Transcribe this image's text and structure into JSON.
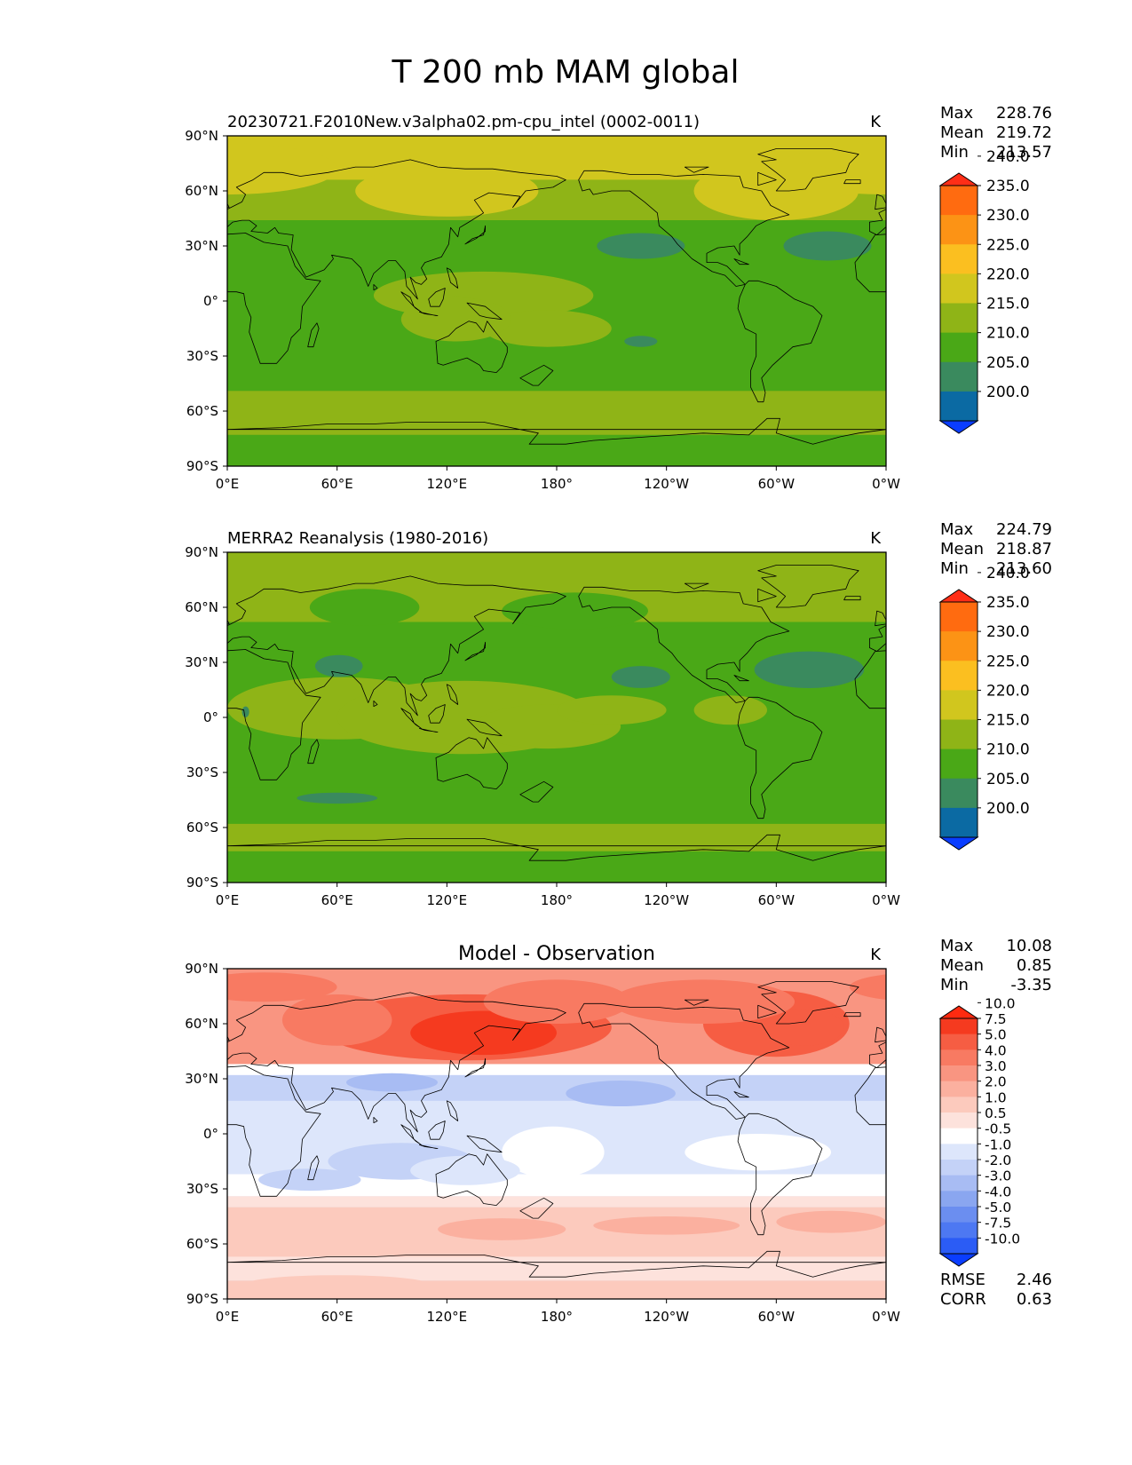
{
  "figure": {
    "title": "T 200 mb MAM global"
  },
  "chart_data": [
    {
      "type": "heatmap",
      "title": "20230721.F2010New.v3alpha02.pm-cpu_intel (0002-0011)",
      "units": "K",
      "stats": {
        "max_label": "Max",
        "max": "228.76",
        "mean_label": "Mean",
        "mean": "219.72",
        "min_label": "Min",
        "min": "213.57"
      },
      "xlim": [
        0,
        360
      ],
      "ylim": [
        -90,
        90
      ],
      "x_ticks": [
        "0°E",
        "60°E",
        "120°E",
        "180°",
        "120°W",
        "60°W",
        "0°W"
      ],
      "y_ticks": [
        "90°S",
        "60°S",
        "30°S",
        "0°",
        "30°N",
        "60°N",
        "90°N"
      ],
      "colorbar": {
        "levels": [
          "200.0",
          "205.0",
          "210.0",
          "215.0",
          "220.0",
          "225.0",
          "230.0",
          "235.0",
          "240.0"
        ],
        "colors": [
          "#0a3dff",
          "#0b6aa3",
          "#3a8a5e",
          "#4aa817",
          "#8fb417",
          "#d1c61e",
          "#fbbf20",
          "#fc9315",
          "#ff6b10",
          "#ff2e17"
        ]
      }
    },
    {
      "type": "heatmap",
      "title": "MERRA2 Reanalysis (1980-2016)",
      "units": "K",
      "stats": {
        "max_label": "Max",
        "max": "224.79",
        "mean_label": "Mean",
        "mean": "218.87",
        "min_label": "Min",
        "min": "213.60"
      },
      "xlim": [
        0,
        360
      ],
      "ylim": [
        -90,
        90
      ],
      "x_ticks": [
        "0°E",
        "60°E",
        "120°E",
        "180°",
        "120°W",
        "60°W",
        "0°W"
      ],
      "y_ticks": [
        "90°S",
        "60°S",
        "30°S",
        "0°",
        "30°N",
        "60°N",
        "90°N"
      ],
      "colorbar": {
        "levels": [
          "200.0",
          "205.0",
          "210.0",
          "215.0",
          "220.0",
          "225.0",
          "230.0",
          "235.0",
          "240.0"
        ],
        "colors": [
          "#0a3dff",
          "#0b6aa3",
          "#3a8a5e",
          "#4aa817",
          "#8fb417",
          "#d1c61e",
          "#fbbf20",
          "#fc9315",
          "#ff6b10",
          "#ff2e17"
        ]
      }
    },
    {
      "type": "heatmap",
      "title": "Model - Observation",
      "units": "K",
      "stats": {
        "max_label": "Max",
        "max": "10.08",
        "mean_label": "Mean",
        "mean": "0.85",
        "min_label": "Min",
        "min": "-3.35"
      },
      "extra": {
        "rmse_label": "RMSE",
        "rmse": "2.46",
        "corr_label": "CORR",
        "corr": "0.63"
      },
      "xlim": [
        0,
        360
      ],
      "ylim": [
        -90,
        90
      ],
      "x_ticks": [
        "0°E",
        "60°E",
        "120°E",
        "180°",
        "120°W",
        "60°W",
        "0°W"
      ],
      "y_ticks": [
        "90°S",
        "60°S",
        "30°S",
        "0°",
        "30°N",
        "60°N",
        "90°N"
      ],
      "colorbar": {
        "levels": [
          "-10.0",
          "-7.5",
          "-5.0",
          "-4.0",
          "-3.0",
          "-2.0",
          "-1.0",
          "-0.5",
          "0.5",
          "1.0",
          "2.0",
          "3.0",
          "4.0",
          "5.0",
          "7.5",
          "10.0"
        ],
        "colors": [
          "#0a3dff",
          "#2b5cf5",
          "#4d78f2",
          "#6b8ef0",
          "#8aa6f0",
          "#a8bcf3",
          "#c4d2f7",
          "#dde6fb",
          "#ffffff",
          "#fde2dc",
          "#fccabd",
          "#fbb09f",
          "#f99581",
          "#f87a62",
          "#f65d43",
          "#f53a1f",
          "#ff2a10"
        ]
      }
    }
  ]
}
